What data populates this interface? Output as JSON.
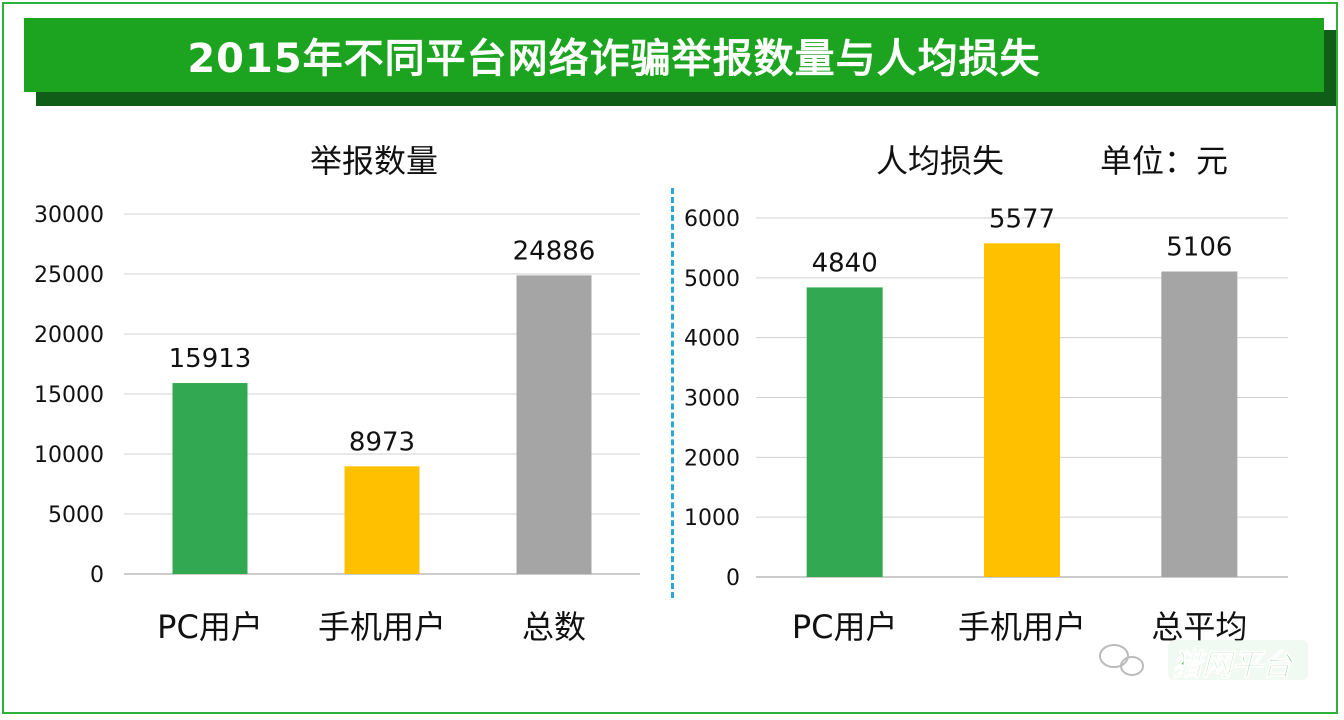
{
  "banner": {
    "title": "2015年不同平台网络诈骗举报数量与人均损失"
  },
  "left_chart_title": "举报数量",
  "right_chart_title": "人均损失",
  "right_unit": "单位：元",
  "colors": {
    "green": "#33a853",
    "yellow": "#ffc000",
    "gray": "#a5a5a5",
    "banner": "#1ca31f"
  },
  "watermark": {
    "text": "猎网平台"
  },
  "chart_data": [
    {
      "type": "bar",
      "title": "举报数量",
      "categories": [
        "PC用户",
        "手机用户",
        "总数"
      ],
      "values": [
        15913,
        8973,
        24886
      ],
      "data_labels": [
        "15913",
        "8973",
        "24886"
      ],
      "yticks": [
        0,
        5000,
        10000,
        15000,
        20000,
        25000,
        30000
      ],
      "ylim": [
        0,
        30000
      ],
      "bar_colors": [
        "#33a853",
        "#ffc000",
        "#a5a5a5"
      ],
      "grid": true,
      "legend": "none"
    },
    {
      "type": "bar",
      "title": "人均损失",
      "unit": "单位：元",
      "categories": [
        "PC用户",
        "手机用户",
        "总平均"
      ],
      "values": [
        4840,
        5577,
        5106
      ],
      "data_labels": [
        "4840",
        "5577",
        "5106"
      ],
      "yticks": [
        0,
        1000,
        2000,
        3000,
        4000,
        5000,
        6000
      ],
      "ylim": [
        0,
        6000
      ],
      "bar_colors": [
        "#33a853",
        "#ffc000",
        "#a5a5a5"
      ],
      "grid": true,
      "legend": "none"
    }
  ]
}
